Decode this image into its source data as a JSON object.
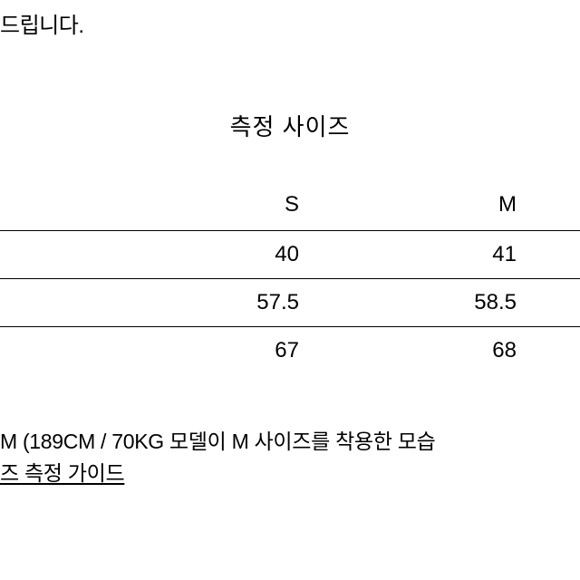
{
  "topFragment": "드립니다.",
  "title": "측정 사이즈",
  "table": {
    "columns": [
      "S",
      "M"
    ],
    "rows": [
      [
        "40",
        "41"
      ],
      [
        "57.5",
        "58.5"
      ],
      [
        "67",
        "68"
      ]
    ]
  },
  "note1": "M (189CM / 70KG 모델이 M 사이즈를 착용한 모습",
  "note2": "즈 측정 가이드",
  "style": {
    "background_color": "#ffffff",
    "text_color": "#000000",
    "border_color": "#000000",
    "title_fontsize": 26,
    "body_fontsize": 24,
    "note_fontsize": 23
  }
}
